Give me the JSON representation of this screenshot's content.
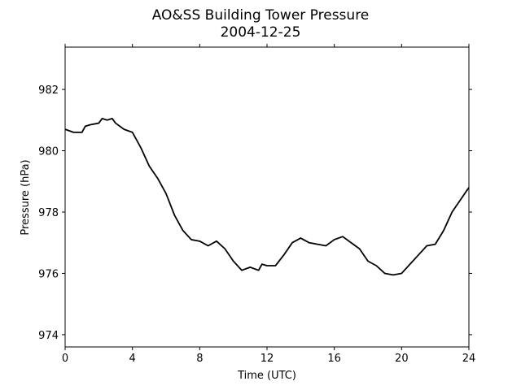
{
  "chart_data": {
    "type": "line",
    "title": "AO&SS Building Tower Pressure",
    "subtitle": "2004-12-25",
    "x_label": "Time (UTC)",
    "y_label": "Pressure (hPa)",
    "x": [
      0,
      0.5,
      1,
      1.2,
      1.5,
      2,
      2.2,
      2.5,
      2.8,
      3,
      3.5,
      4,
      4.5,
      5,
      5.5,
      6,
      6.5,
      7,
      7.5,
      8,
      8.5,
      9,
      9.5,
      10,
      10.5,
      11,
      11.5,
      11.7,
      12,
      12.5,
      13,
      13.5,
      14,
      14.5,
      15,
      15.5,
      16,
      16.5,
      17,
      17.5,
      18,
      18.5,
      19,
      19.5,
      20,
      20.5,
      21,
      21.5,
      22,
      22.5,
      23,
      23.5,
      24
    ],
    "series": [
      {
        "name": "Pressure",
        "color": "#000000",
        "values": [
          980.7,
          980.6,
          980.6,
          980.8,
          980.85,
          980.9,
          981.05,
          981.0,
          981.05,
          980.9,
          980.7,
          980.6,
          980.1,
          979.5,
          979.1,
          978.6,
          977.9,
          977.4,
          977.1,
          977.05,
          976.9,
          977.05,
          976.8,
          976.4,
          976.1,
          976.2,
          976.1,
          976.3,
          976.25,
          976.25,
          976.6,
          977.0,
          977.15,
          977.0,
          976.95,
          976.9,
          977.1,
          977.2,
          977.0,
          976.8,
          976.4,
          976.25,
          976.0,
          975.95,
          976.0,
          976.3,
          976.6,
          976.9,
          976.95,
          977.4,
          978.0,
          978.4,
          978.8
        ]
      }
    ],
    "xlim": [
      0,
      24
    ],
    "xticks": [
      0,
      4,
      8,
      12,
      16,
      20,
      24
    ],
    "ylim": [
      973.6,
      983.38
    ],
    "yticks": [
      974,
      976,
      978,
      980,
      982
    ]
  }
}
